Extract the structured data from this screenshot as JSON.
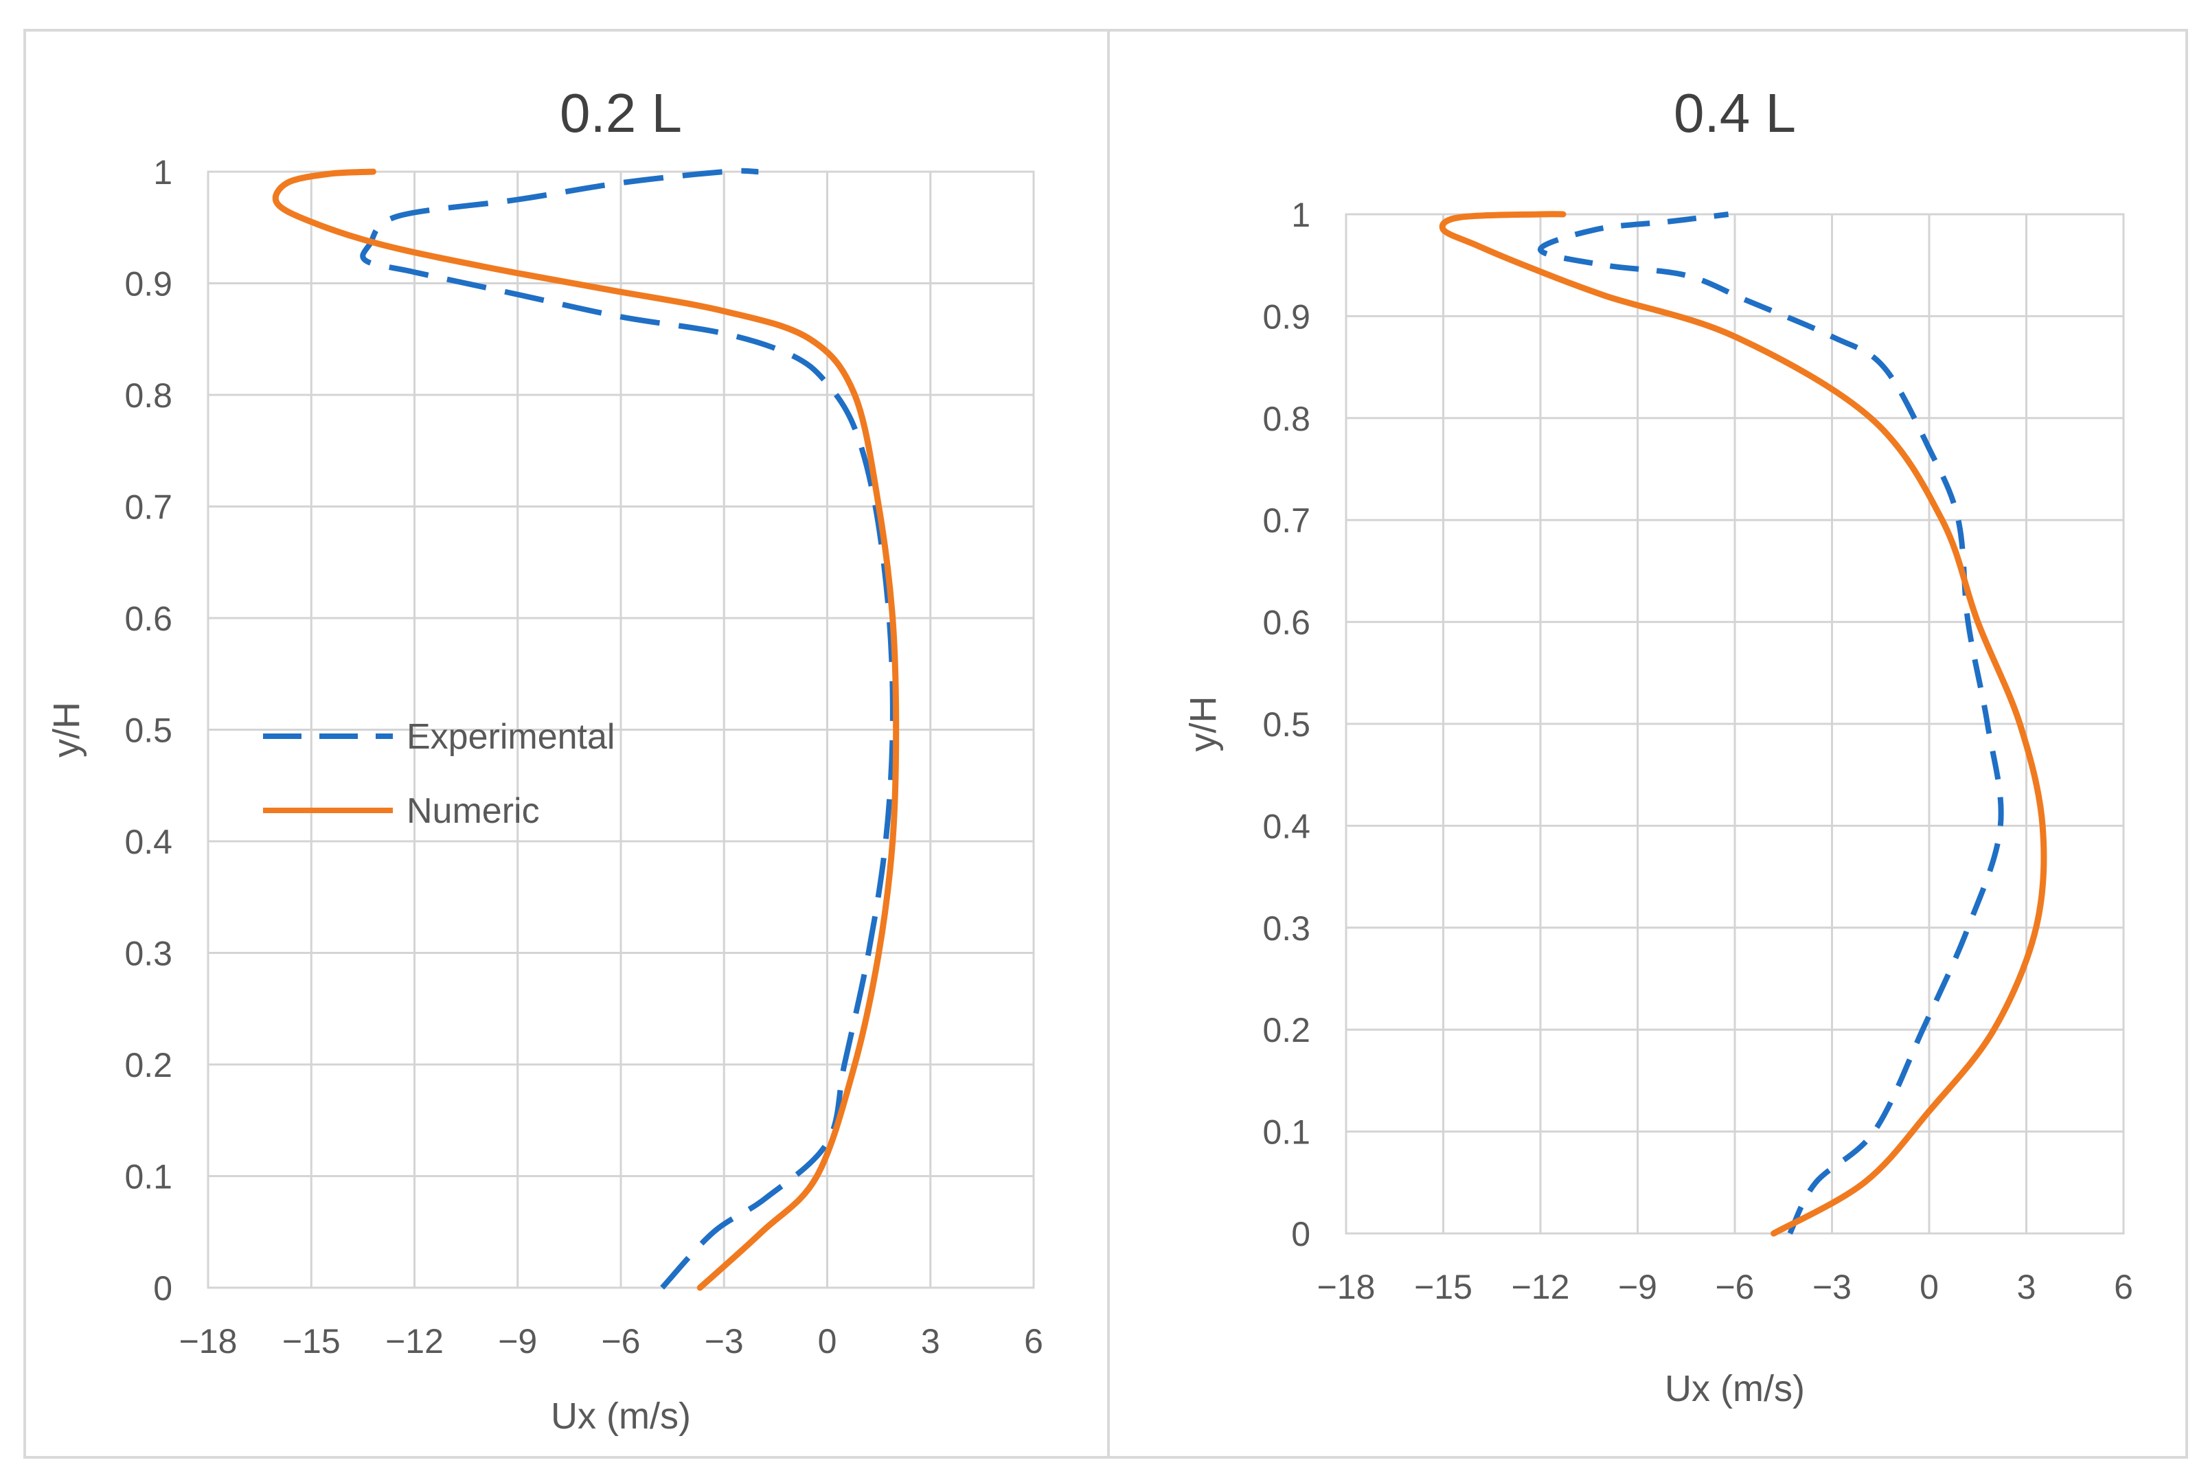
{
  "chart_data": [
    {
      "type": "line",
      "title": "0.2 L",
      "xlabel": "Ux  (m/s)",
      "ylabel": "y/H",
      "xlim": [
        -18,
        6
      ],
      "ylim": [
        0,
        1
      ],
      "xticks": [
        -18,
        -15,
        -12,
        -9,
        -6,
        -3,
        0,
        3,
        6
      ],
      "yticks": [
        0,
        0.1,
        0.2,
        0.3,
        0.4,
        0.5,
        0.6,
        0.7,
        0.8,
        0.9,
        1
      ],
      "grid": true,
      "legend_position": "center-left",
      "series": [
        {
          "name": "Experimental",
          "style": "dashed",
          "color": "#1f6fc5",
          "points": [
            [
              -4.8,
              0
            ],
            [
              -3.3,
              0.05
            ],
            [
              -1.8,
              0.08
            ],
            [
              0,
              0.13
            ],
            [
              0.5,
              0.2
            ],
            [
              1.2,
              0.3
            ],
            [
              1.7,
              0.4
            ],
            [
              1.9,
              0.5
            ],
            [
              1.8,
              0.6
            ],
            [
              1.4,
              0.7
            ],
            [
              0.8,
              0.77
            ],
            [
              0,
              0.81
            ],
            [
              -1,
              0.835
            ],
            [
              -3,
              0.855
            ],
            [
              -6,
              0.87
            ],
            [
              -9,
              0.89
            ],
            [
              -12,
              0.91
            ],
            [
              -13.4,
              0.92
            ],
            [
              -13.3,
              0.935
            ],
            [
              -12.5,
              0.96
            ],
            [
              -9,
              0.975
            ],
            [
              -6,
              0.99
            ],
            [
              -3,
              1.0
            ],
            [
              -2,
              1.0
            ]
          ]
        },
        {
          "name": "Numeric",
          "style": "solid",
          "color": "#f07a1f",
          "points": [
            [
              -3.7,
              0
            ],
            [
              -1.9,
              0.05
            ],
            [
              -0.3,
              0.1
            ],
            [
              0.8,
              0.2
            ],
            [
              1.5,
              0.3
            ],
            [
              1.9,
              0.4
            ],
            [
              2.0,
              0.5
            ],
            [
              1.9,
              0.6
            ],
            [
              1.5,
              0.7
            ],
            [
              0.8,
              0.8
            ],
            [
              -0.5,
              0.85
            ],
            [
              -3,
              0.875
            ],
            [
              -6.5,
              0.895
            ],
            [
              -10,
              0.915
            ],
            [
              -13,
              0.935
            ],
            [
              -15,
              0.955
            ],
            [
              -16,
              0.972
            ],
            [
              -15.7,
              0.99
            ],
            [
              -14.5,
              0.998
            ],
            [
              -13.2,
              1.0
            ]
          ]
        }
      ]
    },
    {
      "type": "line",
      "title": "0.4 L",
      "xlabel": "Ux  (m/s)",
      "ylabel": "y/H",
      "xlim": [
        -18,
        6
      ],
      "ylim": [
        0,
        1
      ],
      "xticks": [
        -18,
        -15,
        -12,
        -9,
        -6,
        -3,
        0,
        3,
        6
      ],
      "yticks": [
        0,
        0.1,
        0.2,
        0.3,
        0.4,
        0.5,
        0.6,
        0.7,
        0.8,
        0.9,
        1
      ],
      "grid": true,
      "series": [
        {
          "name": "Experimental",
          "style": "dashed",
          "color": "#1f6fc5",
          "points": [
            [
              -4.3,
              0
            ],
            [
              -3.5,
              0.05
            ],
            [
              -1.7,
              0.1
            ],
            [
              -0.2,
              0.2
            ],
            [
              1.2,
              0.3
            ],
            [
              2.2,
              0.4
            ],
            [
              1.8,
              0.5
            ],
            [
              1.2,
              0.6
            ],
            [
              0.9,
              0.7
            ],
            [
              0,
              0.77
            ],
            [
              -1.4,
              0.85
            ],
            [
              -3,
              0.88
            ],
            [
              -5.6,
              0.915
            ],
            [
              -7.5,
              0.94
            ],
            [
              -10,
              0.95
            ],
            [
              -12,
              0.965
            ],
            [
              -10.3,
              0.985
            ],
            [
              -8,
              0.993
            ],
            [
              -6.2,
              1.0
            ]
          ]
        },
        {
          "name": "Numeric",
          "style": "solid",
          "color": "#f07a1f",
          "points": [
            [
              -4.8,
              0
            ],
            [
              -2,
              0.05
            ],
            [
              0,
              0.12
            ],
            [
              2,
              0.2
            ],
            [
              3.3,
              0.3
            ],
            [
              3.5,
              0.4
            ],
            [
              2.8,
              0.5
            ],
            [
              1.5,
              0.6
            ],
            [
              0.4,
              0.7
            ],
            [
              -1.8,
              0.8
            ],
            [
              -6,
              0.88
            ],
            [
              -10,
              0.92
            ],
            [
              -12.5,
              0.95
            ],
            [
              -14,
              0.97
            ],
            [
              -15,
              0.985
            ],
            [
              -14.5,
              0.997
            ],
            [
              -12,
              1.0
            ],
            [
              -11.3,
              1.0
            ]
          ]
        }
      ]
    }
  ]
}
